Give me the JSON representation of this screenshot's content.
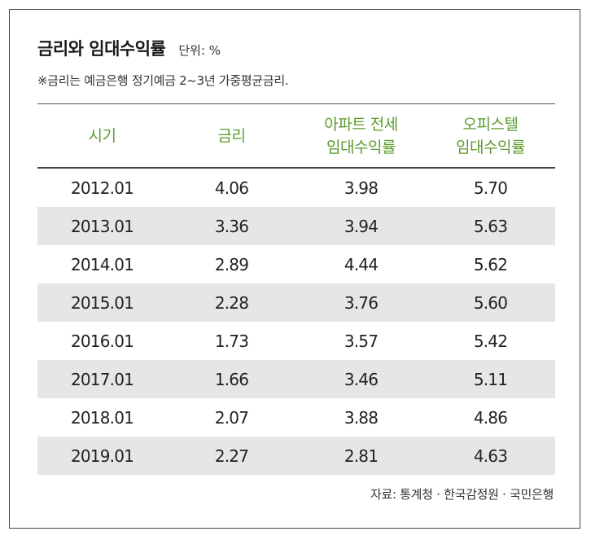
{
  "title": "금리와 임대수익률",
  "unit": "단위: %",
  "note": "※금리는 예금은행 정기예금 2~3년 가중평균금리.",
  "columns": [
    "시기",
    "금리",
    "아파트 전세\n임대수익률",
    "오피스텔\n임대수익률"
  ],
  "rows": [
    [
      "2012.01",
      "4.06",
      "3.98",
      "5.70"
    ],
    [
      "2013.01",
      "3.36",
      "3.94",
      "5.63"
    ],
    [
      "2014.01",
      "2.89",
      "4.44",
      "5.62"
    ],
    [
      "2015.01",
      "2.28",
      "3.76",
      "5.60"
    ],
    [
      "2016.01",
      "1.73",
      "3.57",
      "5.42"
    ],
    [
      "2017.01",
      "1.66",
      "3.46",
      "5.11"
    ],
    [
      "2018.01",
      "2.07",
      "3.88",
      "4.86"
    ],
    [
      "2019.01",
      "2.27",
      "2.81",
      "4.63"
    ]
  ],
  "source": "자료: 통계청 · 한국감정원 · 국민은행",
  "colors": {
    "header_text": "#5d9a2e",
    "stripe": "#e6e6e6"
  }
}
